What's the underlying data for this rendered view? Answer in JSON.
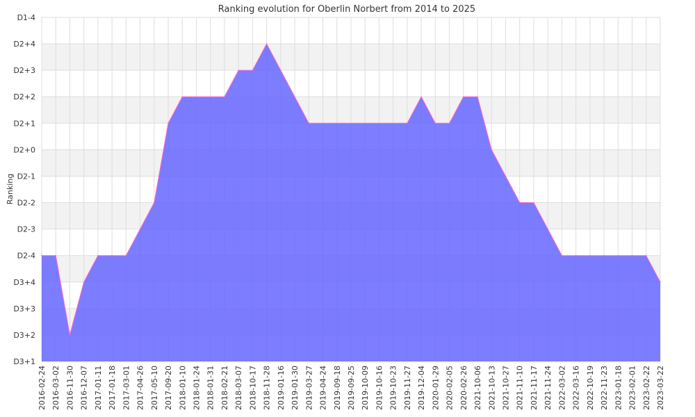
{
  "chart_data": {
    "type": "area",
    "title": "Ranking evolution for Oberlin Norbert from 2014 to 2025",
    "xlabel": "",
    "ylabel": "Ranking",
    "y_ticks": [
      "D3+1",
      "D3+2",
      "D3+3",
      "D3+4",
      "D2-4",
      "D2-3",
      "D2-2",
      "D2-1",
      "D2+0",
      "D2+1",
      "D2+2",
      "D2+3",
      "D2+4",
      "D1-4"
    ],
    "x": [
      "2016-02-24",
      "2016-03-02",
      "2016-11-30",
      "2016-12-07",
      "2017-01-11",
      "2017-01-18",
      "2017-03-01",
      "2017-04-26",
      "2017-05-10",
      "2017-09-20",
      "2018-01-10",
      "2018-01-24",
      "2018-01-31",
      "2018-02-21",
      "2018-03-07",
      "2018-10-17",
      "2018-11-28",
      "2019-01-16",
      "2019-01-30",
      "2019-03-27",
      "2019-04-24",
      "2019-09-18",
      "2019-09-25",
      "2019-10-09",
      "2019-10-16",
      "2019-10-23",
      "2019-11-27",
      "2019-12-04",
      "2020-01-29",
      "2020-02-05",
      "2020-02-26",
      "2021-10-06",
      "2021-10-13",
      "2021-10-27",
      "2021-11-10",
      "2021-11-17",
      "2021-11-24",
      "2022-03-02",
      "2022-03-16",
      "2022-10-19",
      "2022-11-23",
      "2023-01-18",
      "2023-02-01",
      "2023-02-22",
      "2023-03-22"
    ],
    "series": [
      {
        "values": [
          "D2-4",
          "D2-4",
          "D3+2",
          "D3+4",
          "D2-4",
          "D2-4",
          "D2-4",
          "D2-3",
          "D2-2",
          "D2+1",
          "D2+2",
          "D2+2",
          "D2+2",
          "D2+2",
          "D2+3",
          "D2+3",
          "D2+4",
          "D2+3",
          "D2+2",
          "D2+1",
          "D2+1",
          "D2+1",
          "D2+1",
          "D2+1",
          "D2+1",
          "D2+1",
          "D2+1",
          "D2+2",
          "D2+1",
          "D2+1",
          "D2+2",
          "D2+2",
          "D2+0",
          "D2-1",
          "D2-2",
          "D2-2",
          "D2-3",
          "D2-4",
          "D2-4",
          "D2-4",
          "D2-4",
          "D2-4",
          "D2-4",
          "D2-4",
          "D3+4"
        ]
      }
    ],
    "grid": true,
    "colors": {
      "fill": "#6666ff",
      "line": "#ff66cc",
      "band": "#f2f2f2",
      "grid": "#dddddd"
    }
  }
}
